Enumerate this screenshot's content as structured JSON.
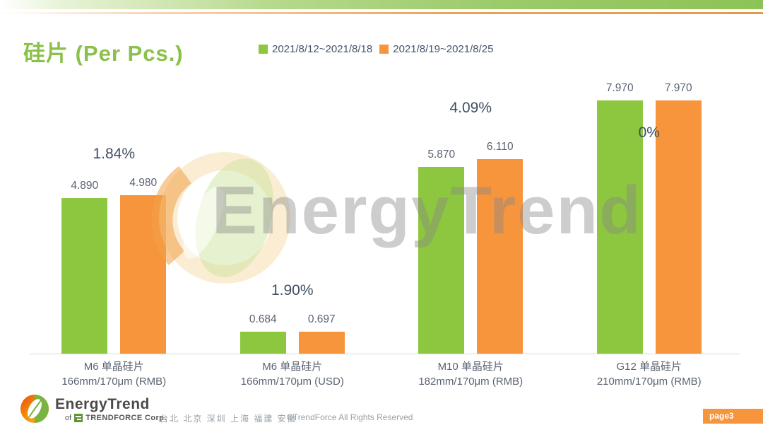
{
  "slide": {
    "title": "硅片 (Per Pcs.)",
    "page_badge": "page3"
  },
  "colors": {
    "week1_green": "#8dc63f",
    "week2_orange": "#f7953d",
    "title_green": "#8bc04a",
    "label_navy": "#3f4e63",
    "value_gray": "#5a6372"
  },
  "chart_data": {
    "type": "bar",
    "title": "硅片 (Per Pcs.)",
    "categories": [
      {
        "line1": "M6 单晶硅片",
        "line2": "166mm/170μm (RMB)"
      },
      {
        "line1": "M6 单晶硅片",
        "line2": "166mm/170μm (USD)"
      },
      {
        "line1": "M10 单晶硅片",
        "line2": "182mm/170μm (RMB)"
      },
      {
        "line1": "G12 单晶硅片",
        "line2": "210mm/170μm  (RMB)"
      }
    ],
    "series": [
      {
        "name": "2021/8/12~2021/8/18",
        "color": "#8dc63f",
        "values": [
          4.89,
          0.684,
          5.87,
          7.97
        ]
      },
      {
        "name": "2021/8/19~2021/8/25",
        "color": "#f7953d",
        "values": [
          4.98,
          0.697,
          6.11,
          7.97
        ]
      }
    ],
    "value_label_decimals": 3,
    "change_labels": [
      {
        "text": "1.84%",
        "position": "above"
      },
      {
        "text": "1.90%",
        "position": "above"
      },
      {
        "text": "4.09%",
        "position": "above"
      },
      {
        "text": "0%",
        "position": "between"
      }
    ],
    "xlabel": "",
    "ylabel": "",
    "ylim": [
      0,
      8.9
    ],
    "grid": false,
    "legend_position": "top-center"
  },
  "watermark": {
    "text": "EnergyTrend"
  },
  "footer": {
    "logo_title": "EnergyTrend",
    "logo_subtitle_prefix": "of",
    "logo_subtitle": "TRENDFORCE Corp.",
    "locations": "台北 北京 深圳 上海 福建 安徽",
    "copyright": "©TrendForce All Rights Reserved"
  }
}
